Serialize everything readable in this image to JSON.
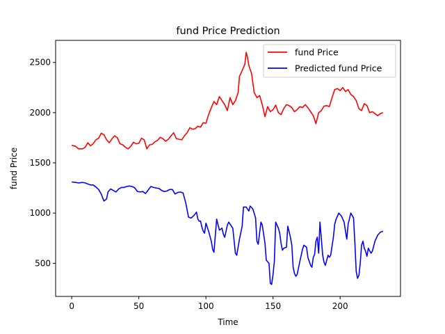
{
  "chart_data": {
    "type": "line",
    "title": "fund Price Prediction",
    "xlabel": "Time",
    "ylabel": "fund Price",
    "xlim": [
      -12,
      245
    ],
    "ylim": [
      170,
      2720
    ],
    "xticks": [
      0,
      50,
      100,
      150,
      200
    ],
    "yticks": [
      500,
      1000,
      1500,
      2000,
      2500
    ],
    "grid": false,
    "legend_position": "top-right",
    "series": [
      {
        "name": "fund Price",
        "color": "#ff0000",
        "points": [
          [
            0,
            1675
          ],
          [
            3,
            1665
          ],
          [
            5,
            1640
          ],
          [
            8,
            1640
          ],
          [
            10,
            1655
          ],
          [
            12,
            1700
          ],
          [
            14,
            1670
          ],
          [
            16,
            1690
          ],
          [
            18,
            1730
          ],
          [
            20,
            1745
          ],
          [
            22,
            1795
          ],
          [
            24,
            1780
          ],
          [
            26,
            1730
          ],
          [
            28,
            1700
          ],
          [
            30,
            1740
          ],
          [
            32,
            1770
          ],
          [
            34,
            1750
          ],
          [
            36,
            1690
          ],
          [
            38,
            1680
          ],
          [
            40,
            1655
          ],
          [
            42,
            1640
          ],
          [
            44,
            1665
          ],
          [
            46,
            1705
          ],
          [
            48,
            1690
          ],
          [
            50,
            1695
          ],
          [
            52,
            1745
          ],
          [
            54,
            1730
          ],
          [
            56,
            1640
          ],
          [
            58,
            1680
          ],
          [
            60,
            1685
          ],
          [
            62,
            1710
          ],
          [
            64,
            1725
          ],
          [
            66,
            1755
          ],
          [
            68,
            1740
          ],
          [
            70,
            1715
          ],
          [
            72,
            1735
          ],
          [
            74,
            1770
          ],
          [
            76,
            1800
          ],
          [
            78,
            1740
          ],
          [
            80,
            1735
          ],
          [
            82,
            1730
          ],
          [
            84,
            1770
          ],
          [
            86,
            1800
          ],
          [
            88,
            1850
          ],
          [
            90,
            1835
          ],
          [
            92,
            1840
          ],
          [
            94,
            1865
          ],
          [
            96,
            1855
          ],
          [
            98,
            1900
          ],
          [
            100,
            1895
          ],
          [
            102,
            1980
          ],
          [
            104,
            2050
          ],
          [
            106,
            2110
          ],
          [
            108,
            2080
          ],
          [
            110,
            2160
          ],
          [
            112,
            2120
          ],
          [
            114,
            2080
          ],
          [
            116,
            2020
          ],
          [
            118,
            2150
          ],
          [
            120,
            2080
          ],
          [
            122,
            2120
          ],
          [
            124,
            2200
          ],
          [
            125,
            2360
          ],
          [
            127,
            2420
          ],
          [
            129,
            2480
          ],
          [
            130,
            2600
          ],
          [
            131,
            2550
          ],
          [
            132,
            2470
          ],
          [
            134,
            2390
          ],
          [
            136,
            2200
          ],
          [
            138,
            2150
          ],
          [
            140,
            2170
          ],
          [
            142,
            2080
          ],
          [
            144,
            1960
          ],
          [
            146,
            2060
          ],
          [
            148,
            2010
          ],
          [
            150,
            2030
          ],
          [
            152,
            2075
          ],
          [
            154,
            2000
          ],
          [
            156,
            1980
          ],
          [
            158,
            2040
          ],
          [
            160,
            2080
          ],
          [
            162,
            2070
          ],
          [
            164,
            2050
          ],
          [
            166,
            2010
          ],
          [
            168,
            2030
          ],
          [
            170,
            2060
          ],
          [
            172,
            2050
          ],
          [
            174,
            2080
          ],
          [
            176,
            2050
          ],
          [
            178,
            2010
          ],
          [
            180,
            1970
          ],
          [
            182,
            1890
          ],
          [
            184,
            2000
          ],
          [
            186,
            2020
          ],
          [
            188,
            2065
          ],
          [
            190,
            2070
          ],
          [
            192,
            2060
          ],
          [
            194,
            2150
          ],
          [
            196,
            2230
          ],
          [
            198,
            2240
          ],
          [
            200,
            2220
          ],
          [
            202,
            2250
          ],
          [
            204,
            2210
          ],
          [
            206,
            2230
          ],
          [
            208,
            2180
          ],
          [
            210,
            2160
          ],
          [
            212,
            2120
          ],
          [
            214,
            2040
          ],
          [
            216,
            2020
          ],
          [
            218,
            2090
          ],
          [
            220,
            2070
          ],
          [
            222,
            2000
          ],
          [
            224,
            2010
          ],
          [
            226,
            1990
          ],
          [
            228,
            1970
          ],
          [
            230,
            1990
          ],
          [
            232,
            2000
          ]
        ]
      },
      {
        "name": "Predicted fund Price",
        "color": "#0000ff",
        "points": [
          [
            0,
            1310
          ],
          [
            3,
            1305
          ],
          [
            5,
            1300
          ],
          [
            8,
            1305
          ],
          [
            10,
            1300
          ],
          [
            12,
            1290
          ],
          [
            14,
            1280
          ],
          [
            16,
            1280
          ],
          [
            18,
            1260
          ],
          [
            20,
            1235
          ],
          [
            22,
            1190
          ],
          [
            24,
            1120
          ],
          [
            26,
            1140
          ],
          [
            27,
            1210
          ],
          [
            29,
            1240
          ],
          [
            31,
            1225
          ],
          [
            33,
            1210
          ],
          [
            35,
            1240
          ],
          [
            37,
            1255
          ],
          [
            39,
            1255
          ],
          [
            41,
            1265
          ],
          [
            43,
            1270
          ],
          [
            45,
            1265
          ],
          [
            47,
            1250
          ],
          [
            49,
            1215
          ],
          [
            51,
            1210
          ],
          [
            53,
            1215
          ],
          [
            55,
            1195
          ],
          [
            57,
            1230
          ],
          [
            59,
            1265
          ],
          [
            61,
            1255
          ],
          [
            63,
            1250
          ],
          [
            65,
            1245
          ],
          [
            67,
            1225
          ],
          [
            69,
            1215
          ],
          [
            71,
            1220
          ],
          [
            73,
            1235
          ],
          [
            75,
            1235
          ],
          [
            77,
            1190
          ],
          [
            79,
            1205
          ],
          [
            81,
            1210
          ],
          [
            83,
            1200
          ],
          [
            85,
            1100
          ],
          [
            87,
            960
          ],
          [
            89,
            950
          ],
          [
            91,
            975
          ],
          [
            93,
            1010
          ],
          [
            94,
            940
          ],
          [
            95,
            920
          ],
          [
            96,
            920
          ],
          [
            97,
            860
          ],
          [
            98,
            820
          ],
          [
            99,
            800
          ],
          [
            100,
            900
          ],
          [
            102,
            820
          ],
          [
            104,
            720
          ],
          [
            105,
            640
          ],
          [
            106,
            610
          ],
          [
            108,
            940
          ],
          [
            110,
            830
          ],
          [
            112,
            850
          ],
          [
            113,
            790
          ],
          [
            114,
            760
          ],
          [
            116,
            880
          ],
          [
            117,
            910
          ],
          [
            119,
            870
          ],
          [
            120,
            850
          ],
          [
            122,
            600
          ],
          [
            123,
            580
          ],
          [
            125,
            740
          ],
          [
            127,
            870
          ],
          [
            128,
            1060
          ],
          [
            130,
            1060
          ],
          [
            132,
            1020
          ],
          [
            133,
            1070
          ],
          [
            135,
            1040
          ],
          [
            137,
            950
          ],
          [
            138,
            720
          ],
          [
            139,
            690
          ],
          [
            141,
            910
          ],
          [
            142,
            880
          ],
          [
            144,
            700
          ],
          [
            145,
            530
          ],
          [
            147,
            500
          ],
          [
            148,
            300
          ],
          [
            149,
            290
          ],
          [
            150,
            390
          ],
          [
            151,
            520
          ],
          [
            152,
            910
          ],
          [
            154,
            850
          ],
          [
            155,
            800
          ],
          [
            156,
            700
          ],
          [
            157,
            630
          ],
          [
            158,
            650
          ],
          [
            160,
            660
          ],
          [
            161,
            870
          ],
          [
            163,
            760
          ],
          [
            164,
            680
          ],
          [
            165,
            460
          ],
          [
            166,
            400
          ],
          [
            167,
            370
          ],
          [
            168,
            390
          ],
          [
            170,
            520
          ],
          [
            172,
            640
          ],
          [
            173,
            680
          ],
          [
            175,
            660
          ],
          [
            176,
            560
          ],
          [
            178,
            480
          ],
          [
            179,
            460
          ],
          [
            180,
            560
          ],
          [
            181,
            590
          ],
          [
            182,
            720
          ],
          [
            183,
            760
          ],
          [
            184,
            600
          ],
          [
            185,
            910
          ],
          [
            187,
            580
          ],
          [
            188,
            510
          ],
          [
            189,
            480
          ],
          [
            191,
            580
          ],
          [
            192,
            560
          ],
          [
            193,
            580
          ],
          [
            195,
            760
          ],
          [
            196,
            890
          ],
          [
            197,
            940
          ],
          [
            199,
            1000
          ],
          [
            201,
            970
          ],
          [
            203,
            910
          ],
          [
            204,
            820
          ],
          [
            205,
            740
          ],
          [
            206,
            890
          ],
          [
            208,
            1000
          ],
          [
            210,
            950
          ],
          [
            211,
            700
          ],
          [
            212,
            420
          ],
          [
            213,
            350
          ],
          [
            214,
            380
          ],
          [
            215,
            500
          ],
          [
            216,
            680
          ],
          [
            217,
            720
          ],
          [
            218,
            650
          ],
          [
            219,
            620
          ],
          [
            220,
            570
          ],
          [
            221,
            650
          ],
          [
            223,
            600
          ],
          [
            224,
            620
          ],
          [
            226,
            720
          ],
          [
            228,
            780
          ],
          [
            230,
            810
          ],
          [
            232,
            820
          ]
        ]
      }
    ]
  }
}
